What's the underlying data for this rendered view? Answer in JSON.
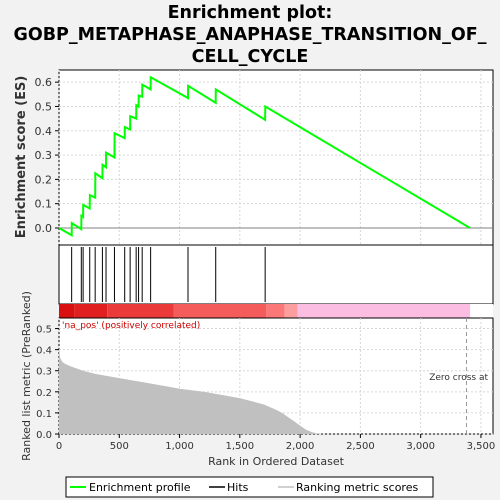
{
  "title_lines": [
    "Enrichment plot:",
    "GOBP_METAPHASE_ANAPHASE_TRANSITION_OF_",
    "CELL_CYCLE"
  ],
  "colors": {
    "es_line": "#00ff00",
    "hits": "#000000",
    "metric_fill": "#c0c0c0",
    "pos_label": "#cc0000",
    "zero_cross_line": "#999999"
  },
  "chart_data": {
    "type": "line",
    "xlabel": "Rank in Ordered Dataset",
    "xlim": [
      0,
      3600
    ],
    "x_ticks": [
      0,
      500,
      1000,
      1500,
      2000,
      2500,
      3000,
      3500
    ],
    "x_tick_labels": [
      "0",
      "500",
      "1,000",
      "1,500",
      "2,000",
      "2,500",
      "3,000",
      "3,500"
    ],
    "es_panel": {
      "ylabel": "Enrichment score (ES)",
      "ylim": [
        -0.07,
        0.65
      ],
      "y_ticks": [
        0.0,
        0.1,
        0.2,
        0.3,
        0.4,
        0.5,
        0.6
      ],
      "y_tick_labels": [
        "0.0",
        "0.1",
        "0.2",
        "0.3",
        "0.4",
        "0.5",
        "0.6"
      ],
      "grid": true,
      "series": [
        {
          "name": "Enrichment profile",
          "x": [
            0,
            105,
            106,
            185,
            186,
            200,
            201,
            255,
            256,
            300,
            301,
            360,
            361,
            390,
            391,
            460,
            461,
            545,
            546,
            590,
            591,
            640,
            641,
            660,
            661,
            690,
            691,
            760,
            761,
            1070,
            1071,
            1300,
            1301,
            1710,
            1711,
            3410
          ],
          "y": [
            0.0,
            -0.03,
            0.02,
            -0.005,
            0.05,
            0.045,
            0.095,
            0.08,
            0.135,
            0.125,
            0.225,
            0.205,
            0.26,
            0.25,
            0.31,
            0.29,
            0.39,
            0.37,
            0.415,
            0.405,
            0.46,
            0.45,
            0.505,
            0.5,
            0.545,
            0.54,
            0.59,
            0.57,
            0.62,
            0.535,
            0.585,
            0.515,
            0.57,
            0.445,
            0.5,
            0.0
          ]
        }
      ]
    },
    "hits": {
      "name": "Hits",
      "x": [
        105,
        185,
        200,
        255,
        300,
        360,
        390,
        460,
        545,
        590,
        640,
        660,
        690,
        760,
        1070,
        1300,
        1710
      ]
    },
    "rank_bar": {
      "segments": [
        {
          "x0": 0,
          "x1": 130,
          "color": "#d91010"
        },
        {
          "x0": 130,
          "x1": 400,
          "color": "#e02020"
        },
        {
          "x0": 400,
          "x1": 950,
          "color": "#ea3a3a"
        },
        {
          "x0": 950,
          "x1": 1720,
          "color": "#f45c5c"
        },
        {
          "x0": 1720,
          "x1": 1870,
          "color": "#fb7878"
        },
        {
          "x0": 1870,
          "x1": 1980,
          "color": "#fc9e9e"
        },
        {
          "x0": 1980,
          "x1": 3410,
          "color": "#fbbde2"
        }
      ]
    },
    "metric_panel": {
      "ylabel": "Ranked list metric (PreRanked)",
      "ylim": [
        0,
        0.55
      ],
      "y_ticks": [
        0.0,
        0.1,
        0.2,
        0.3,
        0.4,
        0.5
      ],
      "y_tick_labels": [
        "0.0",
        "0.1",
        "0.2",
        "0.3",
        "0.4",
        "0.5"
      ],
      "grid": true,
      "series": [
        {
          "name": "Ranking metric scores",
          "x": [
            0,
            10,
            30,
            60,
            100,
            150,
            200,
            300,
            400,
            500,
            600,
            700,
            800,
            900,
            1000,
            1100,
            1200,
            1300,
            1400,
            1500,
            1600,
            1700,
            1800,
            1850,
            1900,
            1950,
            2000,
            2050,
            2100,
            2150,
            2200,
            2250,
            3410
          ],
          "y": [
            0.41,
            0.36,
            0.34,
            0.33,
            0.32,
            0.31,
            0.3,
            0.285,
            0.275,
            0.265,
            0.255,
            0.245,
            0.235,
            0.225,
            0.215,
            0.207,
            0.2,
            0.19,
            0.18,
            0.17,
            0.155,
            0.14,
            0.115,
            0.1,
            0.08,
            0.06,
            0.04,
            0.02,
            0.008,
            0.002,
            0.0,
            0.0,
            0.0
          ]
        }
      ],
      "annotation_pos": "'na_pos' (positively correlated)",
      "zero_cross_label": "Zero cross at",
      "zero_cross_x": 3380
    },
    "legend": {
      "placement": "bottom",
      "entries": [
        "Enrichment profile",
        "Hits",
        "Ranking metric scores"
      ]
    }
  }
}
